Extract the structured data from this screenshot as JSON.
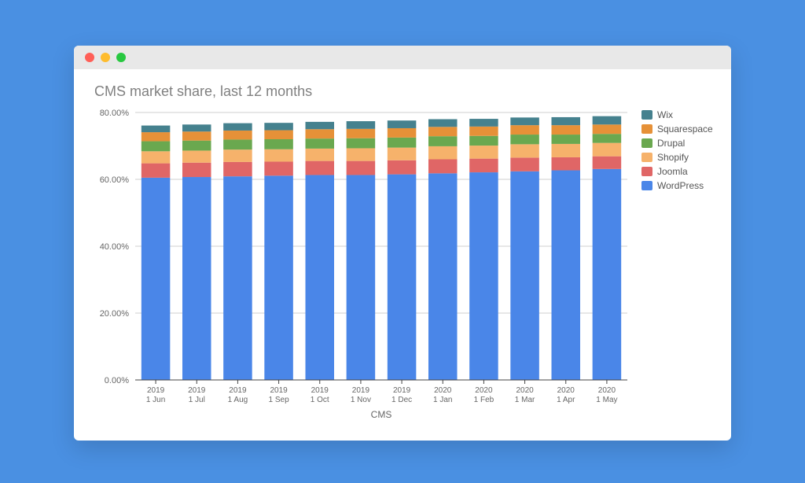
{
  "page_bg": "#4a90e2",
  "window": {
    "titlebar_bg": "#e8e8e8",
    "dot_colors": [
      "#ff5f57",
      "#febc2e",
      "#28c840"
    ]
  },
  "chart": {
    "type": "stacked-bar",
    "title": "CMS market share, last 12 months",
    "title_color": "#808080",
    "title_fontsize": 18,
    "background_color": "#ffffff",
    "grid_color": "#cfcfcf",
    "axis_color": "#444444",
    "tick_label_color": "#666666",
    "tick_fontsize": 11,
    "xaxis_title": "CMS",
    "xaxis_title_fontsize": 12,
    "ylim": [
      0,
      80
    ],
    "ytick_step": 20,
    "ytick_format_suffix": "%",
    "ytick_decimals": 2,
    "bar_gap_ratio": 0.3,
    "categories": [
      {
        "line1": "2019",
        "line2": "1 Jun"
      },
      {
        "line1": "2019",
        "line2": "1 Jul"
      },
      {
        "line1": "2019",
        "line2": "1 Aug"
      },
      {
        "line1": "2019",
        "line2": "1 Sep"
      },
      {
        "line1": "2019",
        "line2": "1 Oct"
      },
      {
        "line1": "2019",
        "line2": "1 Nov"
      },
      {
        "line1": "2019",
        "line2": "1 Dec"
      },
      {
        "line1": "2020",
        "line2": "1 Jan"
      },
      {
        "line1": "2020",
        "line2": "1 Feb"
      },
      {
        "line1": "2020",
        "line2": "1 Mar"
      },
      {
        "line1": "2020",
        "line2": "1 Apr"
      },
      {
        "line1": "2020",
        "line2": "1 May"
      }
    ],
    "series": [
      {
        "name": "WordPress",
        "color": "#4a86e8",
        "values": [
          60.5,
          60.7,
          60.9,
          61.1,
          61.3,
          61.3,
          61.5,
          61.8,
          62.1,
          62.4,
          62.7,
          63.1
        ]
      },
      {
        "name": "Joomla",
        "color": "#e06666",
        "values": [
          4.3,
          4.3,
          4.3,
          4.2,
          4.2,
          4.2,
          4.2,
          4.2,
          4.1,
          4.1,
          3.9,
          3.8
        ]
      },
      {
        "name": "Shopify",
        "color": "#f6b26b",
        "values": [
          3.6,
          3.6,
          3.7,
          3.7,
          3.7,
          3.8,
          3.8,
          3.9,
          3.9,
          4.0,
          4.0,
          4.0
        ]
      },
      {
        "name": "Drupal",
        "color": "#6aa84f",
        "values": [
          3.0,
          3.0,
          3.0,
          3.0,
          3.0,
          3.0,
          3.0,
          3.0,
          2.9,
          2.9,
          2.8,
          2.7
        ]
      },
      {
        "name": "Squarespace",
        "color": "#e69138",
        "values": [
          2.7,
          2.7,
          2.7,
          2.7,
          2.8,
          2.8,
          2.8,
          2.8,
          2.8,
          2.8,
          2.8,
          2.8
        ]
      },
      {
        "name": "Wix",
        "color": "#45818e",
        "values": [
          2.0,
          2.1,
          2.2,
          2.2,
          2.2,
          2.3,
          2.3,
          2.3,
          2.3,
          2.3,
          2.4,
          2.5
        ]
      }
    ],
    "legend_order": [
      "Wix",
      "Squarespace",
      "Drupal",
      "Shopify",
      "Joomla",
      "WordPress"
    ]
  }
}
